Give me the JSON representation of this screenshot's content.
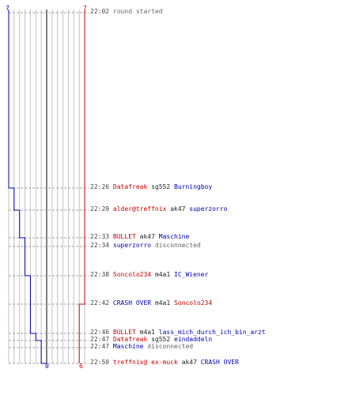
{
  "scores": {
    "blue_start": "7",
    "red_start": "7",
    "blue_end": "0",
    "red_end": "6"
  },
  "colors": {
    "red": "#cc0000",
    "blue": "#0000aa",
    "grid": "#c0c0c0",
    "dash": "#a0a0a0",
    "center": "#555555"
  },
  "events": [
    {
      "time": "22:02",
      "parts": [
        {
          "t": "round started",
          "c": "gray"
        }
      ]
    },
    {
      "time": "22:26",
      "parts": [
        {
          "t": "Datafreak",
          "c": "red"
        },
        {
          "t": "sg552",
          "c": "dark"
        },
        {
          "t": "Burningboy",
          "c": "blue"
        }
      ]
    },
    {
      "time": "22:29",
      "parts": [
        {
          "t": "alder@treffnix",
          "c": "red"
        },
        {
          "t": "ak47",
          "c": "dark"
        },
        {
          "t": "superzorro",
          "c": "blue"
        }
      ]
    },
    {
      "time": "22:33",
      "parts": [
        {
          "t": "BULLET",
          "c": "red"
        },
        {
          "t": "ak47",
          "c": "dark"
        },
        {
          "t": "Maschine",
          "c": "blue"
        }
      ]
    },
    {
      "time": "22:34",
      "parts": [
        {
          "t": "superzorro",
          "c": "blue"
        },
        {
          "t": "disconnected",
          "c": "gray"
        }
      ]
    },
    {
      "time": "22:38",
      "parts": [
        {
          "t": "Soncolo234",
          "c": "red"
        },
        {
          "t": "m4a1",
          "c": "dark"
        },
        {
          "t": "IC_Wiener",
          "c": "blue"
        }
      ]
    },
    {
      "time": "22:42",
      "parts": [
        {
          "t": "CRASH OVER",
          "c": "blue"
        },
        {
          "t": "m4a1",
          "c": "dark"
        },
        {
          "t": "Soncolo234",
          "c": "red"
        }
      ]
    },
    {
      "time": "22:46",
      "parts": [
        {
          "t": "BULLET",
          "c": "red"
        },
        {
          "t": "m4a1",
          "c": "dark"
        },
        {
          "t": "lass_mich_durch_ich_bin_arzt",
          "c": "blue"
        }
      ]
    },
    {
      "time": "22:47",
      "parts": [
        {
          "t": "Datafreak",
          "c": "red"
        },
        {
          "t": "sg552",
          "c": "dark"
        },
        {
          "t": "eindaddeln",
          "c": "blue"
        }
      ]
    },
    {
      "time": "22:47",
      "parts": [
        {
          "t": "Maschine",
          "c": "blue"
        },
        {
          "t": "disconnected",
          "c": "gray"
        }
      ]
    },
    {
      "time": "22:50",
      "parts": [
        {
          "t": "treffnix@ ex-muck",
          "c": "red"
        },
        {
          "t": "ak47",
          "c": "dark"
        },
        {
          "t": "CRASH OVER",
          "c": "blue"
        }
      ]
    }
  ],
  "blue_alive": [
    7,
    7,
    6,
    5,
    4,
    4,
    3,
    3,
    2,
    1,
    1,
    0
  ],
  "red_alive": [
    7,
    7,
    7,
    7,
    7,
    7,
    7,
    6,
    6,
    6,
    6,
    6
  ]
}
